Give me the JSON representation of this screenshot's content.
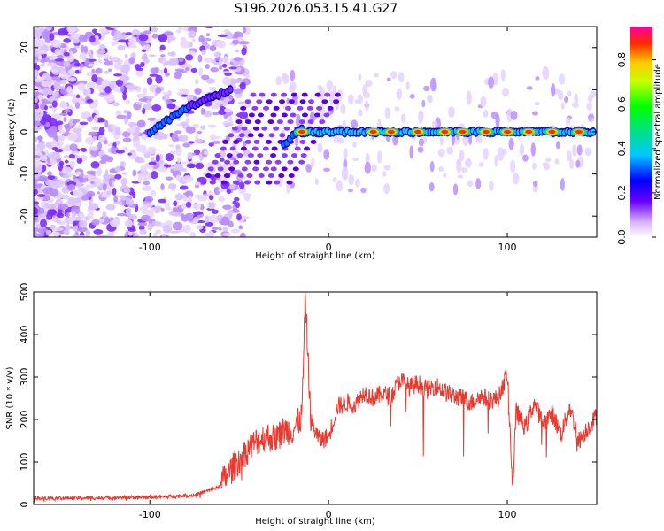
{
  "figure_title": "S196.2026.053.15.41.G27",
  "chart_data": [
    {
      "type": "heatmap",
      "title": "S196.2026.053.15.41.G27",
      "xlabel": "Height of straight line (km)",
      "ylabel": "Frequency (Hz)",
      "xlim": [
        -165,
        150
      ],
      "ylim": [
        -25,
        25
      ],
      "xticks": [
        -100,
        0,
        100
      ],
      "yticks": [
        -20,
        -10,
        0,
        10,
        20
      ],
      "colorbar": {
        "label": "Normalized spectral amplitude",
        "range": [
          0.0,
          0.95
        ],
        "ticks": [
          "0.0",
          "0.2",
          "0.4",
          "0.6",
          "0.8"
        ]
      },
      "ridge_segments": [
        {
          "from_km": -100,
          "to_km": -78,
          "freq_from_hz": 0,
          "freq_to_hz": 6,
          "level": "medium"
        },
        {
          "from_km": -78,
          "to_km": -55,
          "freq_from_hz": 6,
          "freq_to_hz": 10,
          "level": "low"
        },
        {
          "from_km": -25,
          "to_km": -15,
          "freq_from_hz": -3,
          "freq_to_hz": 1,
          "level": "medium"
        },
        {
          "from_km": -15,
          "to_km": 148,
          "freq_from_hz": 0,
          "freq_to_hz": 0,
          "level": "high"
        }
      ],
      "peak_heights_km": [
        -15,
        25,
        35,
        50,
        65,
        75,
        88,
        100,
        112,
        125,
        140
      ]
    },
    {
      "type": "line",
      "title": "",
      "xlabel": "Height of straight line (km)",
      "ylabel": "SNR (10 * v/v)",
      "xlim": [
        -165,
        150
      ],
      "ylim": [
        0,
        500
      ],
      "xticks": [
        -100,
        0,
        100
      ],
      "yticks": [
        0,
        100,
        200,
        300,
        400,
        500
      ],
      "color": "#e83a30",
      "series": [
        {
          "name": "SNR",
          "x": [
            -165,
            -150,
            -135,
            -120,
            -105,
            -90,
            -75,
            -62,
            -52,
            -45,
            -40,
            -35,
            -30,
            -25,
            -20,
            -15,
            -13,
            -10,
            -5,
            0,
            5,
            10,
            15,
            20,
            25,
            30,
            35,
            40,
            45,
            50,
            55,
            60,
            65,
            70,
            75,
            80,
            85,
            90,
            95,
            100,
            103,
            105,
            110,
            115,
            120,
            125,
            130,
            135,
            140,
            145,
            150
          ],
          "y": [
            15,
            15,
            15,
            16,
            17,
            18,
            22,
            40,
            95,
            130,
            150,
            160,
            155,
            175,
            175,
            205,
            490,
            195,
            150,
            160,
            230,
            240,
            235,
            265,
            250,
            260,
            255,
            295,
            275,
            285,
            270,
            280,
            265,
            255,
            250,
            240,
            255,
            245,
            250,
            310,
            40,
            220,
            180,
            240,
            190,
            215,
            165,
            230,
            150,
            180,
            210
          ]
        }
      ]
    }
  ]
}
